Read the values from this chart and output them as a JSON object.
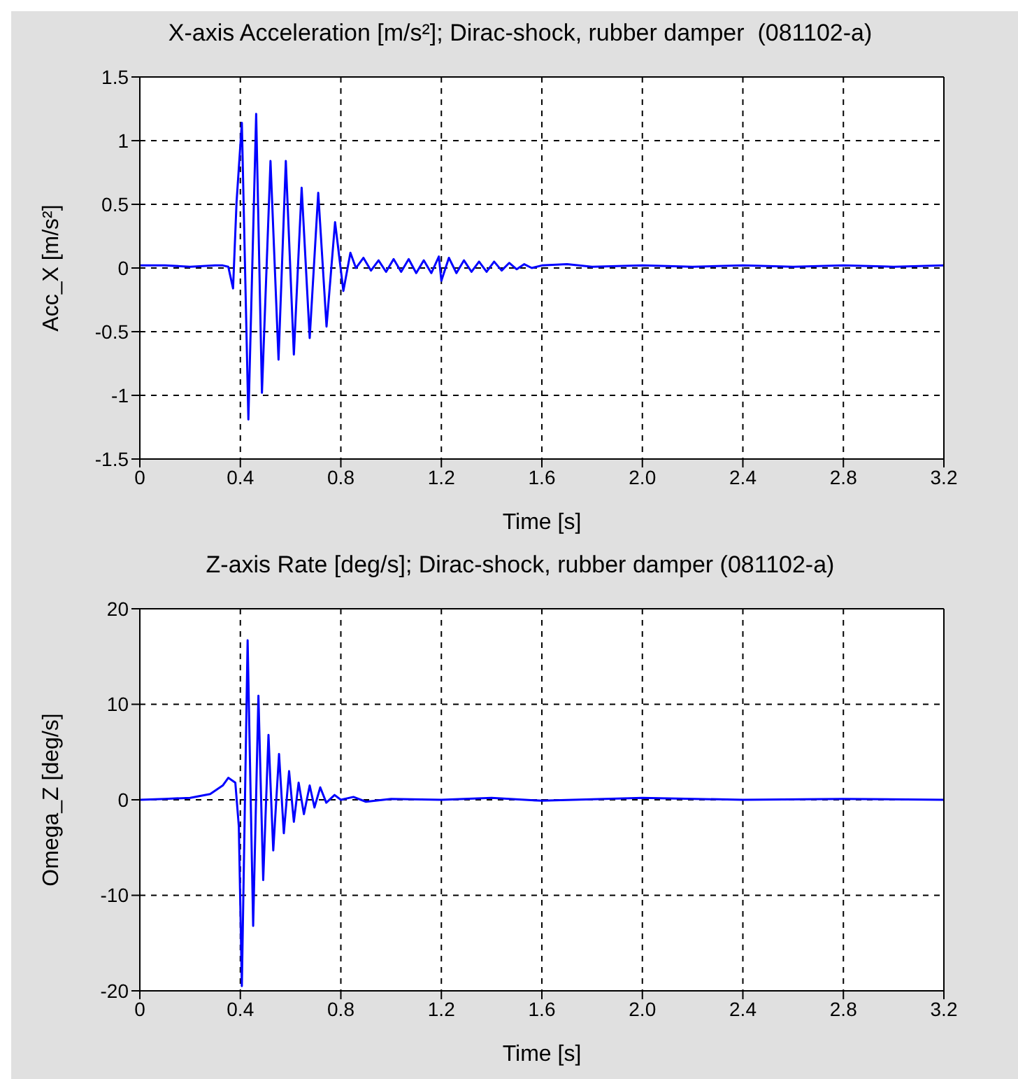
{
  "chart_data": [
    {
      "type": "line",
      "title": "X-axis Acceleration [m/s²]; Dirac-shock, rubber damper  (081102-a)",
      "xlabel": "Time [s]",
      "ylabel": "Acc_X [m/s²]",
      "color": "#0000ff",
      "grid": true,
      "line_style": "solid",
      "marker": "none",
      "x": [
        0,
        0.1,
        0.2,
        0.3,
        0.33,
        0.352,
        0.371,
        0.385,
        0.406,
        0.432,
        0.463,
        0.486,
        0.52,
        0.552,
        0.581,
        0.613,
        0.644,
        0.676,
        0.71,
        0.743,
        0.777,
        0.81,
        0.838,
        0.86,
        0.89,
        0.92,
        0.95,
        0.98,
        1.01,
        1.04,
        1.07,
        1.1,
        1.13,
        1.16,
        1.19,
        1.2,
        1.23,
        1.26,
        1.29,
        1.32,
        1.35,
        1.38,
        1.41,
        1.44,
        1.47,
        1.5,
        1.53,
        1.56,
        1.6,
        1.7,
        1.8,
        2.0,
        2.2,
        2.4,
        2.6,
        2.8,
        3.0,
        3.2
      ],
      "values": [
        0.02,
        0.02,
        0.01,
        0.02,
        0.02,
        0.01,
        -0.16,
        0.52,
        1.14,
        -1.19,
        1.21,
        -0.98,
        0.84,
        -0.72,
        0.84,
        -0.68,
        0.63,
        -0.55,
        0.59,
        -0.46,
        0.36,
        -0.18,
        0.12,
        0,
        0.08,
        -0.02,
        0.06,
        -0.03,
        0.07,
        -0.03,
        0.07,
        -0.04,
        0.06,
        -0.04,
        0.09,
        -0.1,
        0.08,
        -0.04,
        0.06,
        -0.03,
        0.05,
        -0.03,
        0.05,
        -0.02,
        0.04,
        -0.01,
        0.03,
        0,
        0.02,
        0.03,
        0.01,
        0.02,
        0.01,
        0.02,
        0.01,
        0.02,
        0.01,
        0.02
      ],
      "xlim": [
        0,
        3.2
      ],
      "xticks": [
        0,
        0.4,
        0.8,
        1.2,
        1.6,
        {
          "value": 2,
          "label": "2.0"
        },
        2.4,
        2.8,
        3.2
      ],
      "ylim": [
        -1.5,
        1.5
      ],
      "yticks": [
        -1.5,
        -1,
        -0.5,
        0,
        0.5,
        1,
        1.5
      ]
    },
    {
      "type": "line",
      "title": "Z-axis Rate [deg/s]; Dirac-shock, rubber damper (081102-a)",
      "xlabel": "Time [s]",
      "ylabel": "Omega_Z [deg/s]",
      "color": "#0000ff",
      "grid": true,
      "line_style": "solid",
      "marker": "none",
      "x": [
        0,
        0.1,
        0.2,
        0.28,
        0.33,
        0.352,
        0.38,
        0.394,
        0.406,
        0.429,
        0.451,
        0.472,
        0.491,
        0.512,
        0.531,
        0.554,
        0.573,
        0.594,
        0.613,
        0.632,
        0.653,
        0.676,
        0.695,
        0.718,
        0.742,
        0.775,
        0.8,
        0.85,
        0.9,
        1.0,
        1.2,
        1.4,
        1.6,
        2.0,
        2.4,
        2.8,
        3.2
      ],
      "values": [
        0,
        0.1,
        0.2,
        0.6,
        1.5,
        2.3,
        1.8,
        -2.8,
        -19.5,
        16.7,
        -13.2,
        10.9,
        -8.4,
        6.8,
        -5.3,
        4.8,
        -3.5,
        3,
        -2.3,
        1.8,
        -1.5,
        1.5,
        -0.8,
        1.3,
        -0.3,
        0.5,
        0,
        0.3,
        -0.2,
        0.1,
        0,
        0.2,
        -0.1,
        0.2,
        0,
        0.1,
        0
      ],
      "xlim": [
        0,
        3.2
      ],
      "xticks": [
        0,
        0.4,
        0.8,
        1.2,
        1.6,
        {
          "value": 2,
          "label": "2.0"
        },
        2.4,
        2.8,
        3.2
      ],
      "ylim": [
        -20,
        20
      ],
      "yticks": [
        -20,
        -10,
        0,
        10,
        20
      ]
    }
  ]
}
